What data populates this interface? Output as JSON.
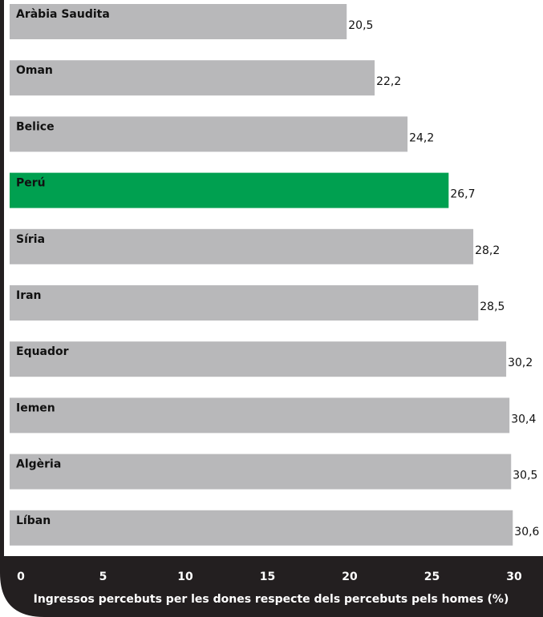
{
  "chart_data": {
    "type": "bar",
    "orientation": "horizontal",
    "categories": [
      "Aràbia Saudita",
      "Oman",
      "Belice",
      "Perú",
      "Síria",
      "Iran",
      "Equador",
      "Iemen",
      "Algèria",
      "Líban"
    ],
    "values": [
      20.5,
      22.2,
      24.2,
      26.7,
      28.2,
      28.5,
      30.2,
      30.4,
      30.5,
      30.6
    ],
    "value_labels": [
      "20,5",
      "22,2",
      "24,2",
      "26,7",
      "28,2",
      "28,5",
      "30,2",
      "30,4",
      "30,5",
      "30,6"
    ],
    "highlight_index": 3,
    "xlabel": "Ingressos percebuts per les dones respecte dels percebuts pels homes (%)",
    "xticks": [
      0,
      5,
      10,
      15,
      20,
      25,
      30
    ],
    "xlim": [
      0,
      30
    ],
    "grid": false,
    "colors": {
      "bar": "#b8b8ba",
      "highlight": "#00a050",
      "frame": "#231f20",
      "background": "#ffffff"
    }
  }
}
